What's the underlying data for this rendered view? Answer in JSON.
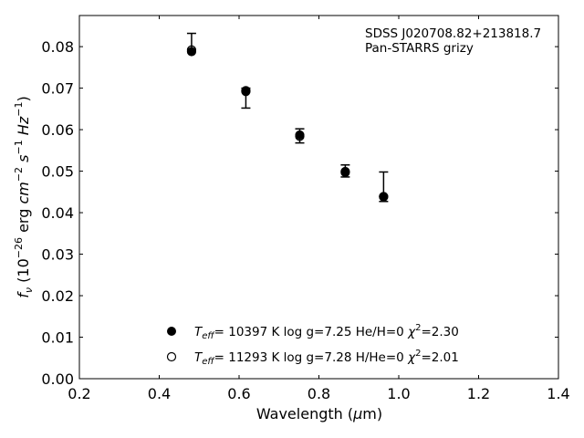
{
  "chart_data": {
    "type": "scatter",
    "title": "",
    "xlabel": "Wavelength (μm)",
    "ylabel": "f_ν (10^-26 erg cm^-2 s^-1 Hz^-1)",
    "xlim": [
      0.2,
      1.4
    ],
    "ylim": [
      0.0,
      0.0875
    ],
    "xticks": [
      "0.2",
      "0.4",
      "0.6",
      "0.8",
      "1.0",
      "1.2",
      "1.4"
    ],
    "yticks": [
      "0.00",
      "0.01",
      "0.02",
      "0.03",
      "0.04",
      "0.05",
      "0.06",
      "0.07",
      "0.08"
    ],
    "annotation": [
      "SDSS J020708.82+213818.7",
      "Pan-STARRS grizy"
    ],
    "observed": {
      "x": [
        0.481,
        0.617,
        0.752,
        0.866,
        0.962
      ],
      "y": [
        0.079,
        0.069,
        0.0585,
        0.05,
        0.044
      ],
      "yerr_low": [
        0.079,
        0.0652,
        0.0568,
        0.0486,
        0.0427
      ],
      "yerr_high": [
        0.0832,
        0.07,
        0.0602,
        0.0515,
        0.0498
      ]
    },
    "series": [
      {
        "name": "T_eff= 10397 K  log g=7.25  He/H=0  χ²=2.30",
        "marker": "filled-circle",
        "x": [
          0.481,
          0.617,
          0.752,
          0.866,
          0.962
        ],
        "y": [
          0.0788,
          0.0694,
          0.0587,
          0.0497,
          0.0438
        ]
      },
      {
        "name": "T_eff= 11293 K  log g=7.28  H/He=0  χ²=2.01",
        "marker": "open-circle",
        "x": [
          0.481,
          0.617,
          0.752,
          0.866,
          0.962
        ],
        "y": [
          0.0792,
          0.0692,
          0.0584,
          0.0499,
          0.0439
        ]
      }
    ],
    "legend_placement": "lower-center",
    "grid": false
  }
}
